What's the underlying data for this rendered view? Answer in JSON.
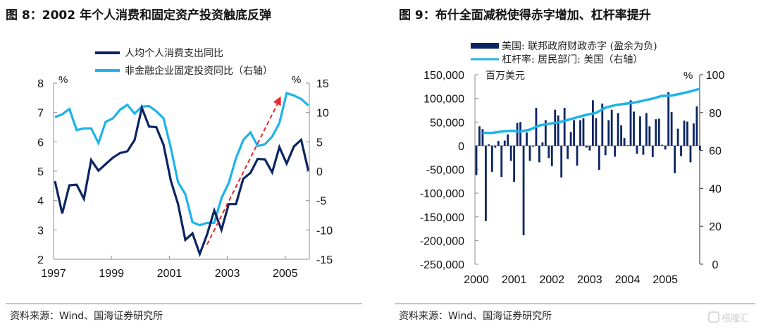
{
  "colors": {
    "dark": "#0b2463",
    "light": "#1db3ea",
    "arrow": "#e8262b",
    "axis": "#8c8c8c"
  },
  "footer_left": "资料来源：Wind、国海证券研究所",
  "footer_right": "资料来源：Wind、国海证券研究所",
  "watermark": "格隆汇",
  "chart_data": [
    {
      "type": "line",
      "title": "图 8：2002 年个人消费和固定资产投资触底反弹",
      "left_unit": "%",
      "right_unit": "%",
      "x_ticks": [
        "1997",
        "1999",
        "2001",
        "2003",
        "2005"
      ],
      "x_range": [
        1997,
        2005.85
      ],
      "ylim_left": [
        2,
        8
      ],
      "yticks_left": [
        "8",
        "7",
        "6",
        "5",
        "4",
        "3",
        "2"
      ],
      "ylim_right": [
        -15,
        15
      ],
      "yticks_right": [
        "15",
        "10",
        "5",
        "0",
        "-5",
        "-10",
        "-15"
      ],
      "legend_position": "top",
      "frequency": "quarterly, 1997Q1-2005Q4",
      "series": [
        {
          "name": "人均个人消费支出同比",
          "axis": "left",
          "color": "#0b2463",
          "values": [
            4.66,
            3.56,
            4.52,
            4.54,
            4.06,
            5.38,
            5.02,
            5.24,
            5.46,
            5.62,
            5.68,
            6.06,
            7.16,
            6.52,
            6.5,
            5.9,
            4.68,
            3.88,
            2.66,
            2.88,
            2.18,
            2.84,
            3.66,
            3.0,
            3.88,
            3.88,
            4.74,
            4.94,
            5.42,
            5.4,
            4.96,
            5.82,
            5.26,
            5.84,
            6.07,
            5.02
          ]
        },
        {
          "name": "非金融企业固定投资同比（右轴）",
          "axis": "right",
          "color": "#1db3ea",
          "values": [
            9.2,
            9.7,
            10.6,
            7.0,
            7.3,
            7.3,
            4.8,
            8.4,
            9.0,
            10.5,
            11.3,
            9.8,
            11.0,
            11.1,
            10.2,
            9.0,
            4.0,
            -1.9,
            -3.9,
            -8.7,
            -9.2,
            -8.8,
            -8.8,
            -4.6,
            -2.0,
            2.2,
            5.3,
            6.6,
            4.3,
            4.6,
            5.9,
            8.2,
            13.3,
            12.9,
            12.3,
            11.2
          ]
        }
      ],
      "annotations": [
        {
          "type": "dashed-arrow",
          "from": [
            2002.3,
            2.5
          ],
          "to": [
            2004.85,
            7.55
          ],
          "axis": "left",
          "color": "#e8262b"
        }
      ]
    },
    {
      "type": "bar+line",
      "title": "图 9：布什全面减税使得赤字增加、杠杆率提升",
      "left_unit": "百万美元",
      "right_unit": "%",
      "x_ticks": [
        "2000",
        "2001",
        "2002",
        "2003",
        "2004",
        "2005"
      ],
      "ylim_left": [
        -250000,
        150000
      ],
      "yticks_left": [
        "150,000",
        "100,000",
        "50,000",
        "0",
        "-50,000",
        "-100,000",
        "-150,000",
        "-200,000",
        "-250,000"
      ],
      "ylim_right": [
        0,
        100
      ],
      "yticks_right": [
        "100",
        "80",
        "60",
        "40",
        "20",
        "0"
      ],
      "legend_position": "top",
      "bars": {
        "name": "美国: 联邦政府财政赤字 (盈余为负)",
        "color": "#0b2463",
        "frequency": "monthly, 2000-01 to 2005-12",
        "values": [
          -62000,
          41000,
          35000,
          -159000,
          3000,
          -55000,
          -4000,
          10000,
          -66000,
          11000,
          24000,
          -32000,
          -76000,
          48000,
          50000,
          -189000,
          28000,
          -32000,
          -2000,
          80000,
          -35000,
          7000,
          54000,
          -26000,
          -43000,
          76000,
          64000,
          -67000,
          80000,
          -28000,
          29000,
          54000,
          -42000,
          54000,
          58000,
          -4000,
          -10000,
          96000,
          58000,
          -51000,
          89000,
          -20000,
          54000,
          76000,
          -23000,
          69000,
          43000,
          16000,
          1000,
          96000,
          72000,
          -17000,
          62000,
          -19000,
          69000,
          41000,
          -24000,
          56000,
          57000,
          2000,
          -8000,
          113000,
          71000,
          -58000,
          36000,
          -22000,
          53000,
          51000,
          -35000,
          47000,
          83000,
          -9000
        ]
      },
      "line": {
        "name": "杠杆率: 居民部门: 美国（右轴）",
        "color": "#1db3ea",
        "x": [
          "2000-03",
          "2000-06",
          "2000-09",
          "2000-12",
          "2001-03",
          "2001-06",
          "2001-09",
          "2001-12",
          "2002-03",
          "2002-06",
          "2002-09",
          "2002-12",
          "2003-03",
          "2003-06",
          "2003-09",
          "2003-12",
          "2004-03",
          "2004-06",
          "2004-09",
          "2004-12",
          "2005-03",
          "2005-06",
          "2005-09",
          "2005-12"
        ],
        "values": [
          69.3,
          69.3,
          70.0,
          70.4,
          70.0,
          71.0,
          73.2,
          74.1,
          74.8,
          76.1,
          77.5,
          78.8,
          79.9,
          82.6,
          83.9,
          84.6,
          85.2,
          86.3,
          87.4,
          88.8,
          89.0,
          90.0,
          91.2,
          92.6
        ]
      }
    }
  ]
}
